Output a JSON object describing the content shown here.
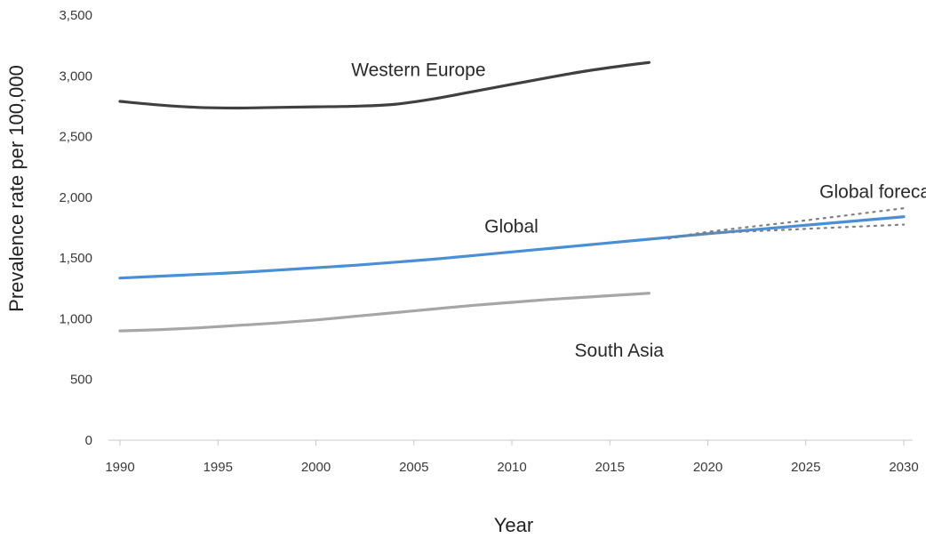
{
  "chart_data": {
    "type": "line",
    "xlabel": "Year",
    "ylabel": "Prevalence rate per 100,000",
    "xlim": [
      1990,
      2030
    ],
    "ylim": [
      0,
      3500
    ],
    "xticks": [
      1990,
      1995,
      2000,
      2005,
      2010,
      2015,
      2020,
      2025,
      2030
    ],
    "yticks": [
      0,
      500,
      1000,
      1500,
      2000,
      2500,
      3000,
      3500
    ],
    "ytick_labels": [
      "0",
      "500",
      "1,000",
      "1,500",
      "2,000",
      "2,500",
      "3,000",
      "3,500"
    ],
    "grid": false,
    "legend": "none",
    "series": [
      {
        "name": "Western Europe",
        "color": "#404040",
        "style": "solid",
        "x": [
          1990,
          1992,
          1994,
          1996,
          1998,
          2000,
          2002,
          2004,
          2006,
          2008,
          2010,
          2012,
          2014,
          2016,
          2017
        ],
        "y": [
          2790,
          2760,
          2740,
          2735,
          2740,
          2745,
          2750,
          2765,
          2810,
          2870,
          2930,
          2990,
          3045,
          3090,
          3110
        ]
      },
      {
        "name": "Global",
        "color": "#4a8fd4",
        "style": "solid",
        "x": [
          1990,
          1992,
          1994,
          1996,
          1998,
          2000,
          2002,
          2004,
          2006,
          2008,
          2010,
          2012,
          2014,
          2016,
          2017
        ],
        "y": [
          1335,
          1350,
          1365,
          1380,
          1400,
          1420,
          1440,
          1465,
          1490,
          1520,
          1550,
          1580,
          1610,
          1640,
          1655
        ]
      },
      {
        "name": "South Asia",
        "color": "#a6a6a6",
        "style": "solid",
        "x": [
          1990,
          1992,
          1994,
          1996,
          1998,
          2000,
          2002,
          2004,
          2006,
          2008,
          2010,
          2012,
          2014,
          2016,
          2017
        ],
        "y": [
          900,
          910,
          925,
          945,
          965,
          990,
          1020,
          1050,
          1080,
          1110,
          1135,
          1160,
          1180,
          1200,
          1210
        ]
      },
      {
        "name": "Global forecast",
        "color": "#4a8fd4",
        "style": "solid",
        "x": [
          2017,
          2020,
          2025,
          2030
        ],
        "y": [
          1655,
          1700,
          1770,
          1840
        ]
      },
      {
        "name": "",
        "color": "#7f7f7f",
        "style": "dotted",
        "x": [
          2018,
          2020,
          2025,
          2030
        ],
        "y": [
          1660,
          1715,
          1810,
          1910
        ]
      },
      {
        "name": "",
        "color": "#7f7f7f",
        "style": "dotted",
        "x": [
          2018,
          2020,
          2025,
          2030
        ],
        "y": [
          1660,
          1700,
          1740,
          1775
        ]
      }
    ],
    "annotations": [
      {
        "text": "Western Europe",
        "x": 2001.8,
        "y": 3000
      },
      {
        "text": "Global",
        "x": 2008.6,
        "y": 1710
      },
      {
        "text": "South Asia",
        "x": 2013.2,
        "y": 690
      },
      {
        "text": "Global forecast",
        "x": 2025.7,
        "y": 1995
      }
    ]
  }
}
